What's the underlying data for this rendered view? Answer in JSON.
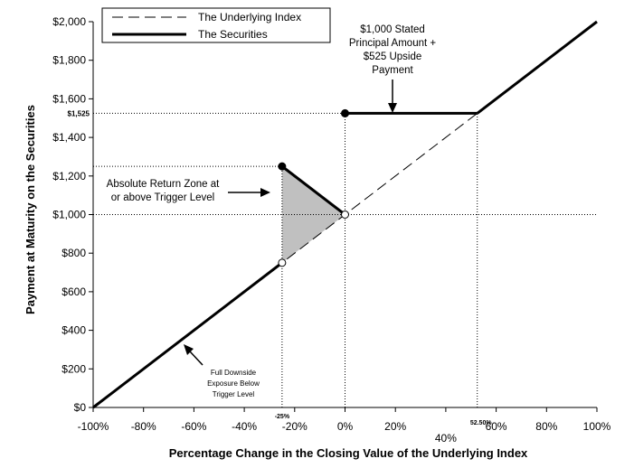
{
  "chart_data": {
    "type": "line",
    "xlabel": "Percentage Change in the Closing Value of the Underlying Index",
    "ylabel": "Payment at Maturity on the Securities",
    "xlim": [
      -100,
      100
    ],
    "ylim": [
      0,
      2000
    ],
    "x_ticks": [
      -100,
      -80,
      -60,
      -40,
      -20,
      0,
      20,
      40,
      60,
      80,
      100
    ],
    "x_tick_labels": [
      "-100%",
      "-80%",
      "-60%",
      "-40%",
      "-20%",
      "0%",
      "20%",
      "40%",
      "60%",
      "80%",
      "100%"
    ],
    "y_ticks": [
      0,
      200,
      400,
      600,
      800,
      1000,
      1200,
      1400,
      1600,
      1800,
      2000
    ],
    "y_tick_labels": [
      "$0",
      "$200",
      "$400",
      "$600",
      "$800",
      "$1,000",
      "$1,200",
      "$1,400",
      "$1,600",
      "$1,800",
      "$2,000"
    ],
    "grid": false,
    "legend_position": "top-left",
    "series": [
      {
        "name": "The Underlying Index",
        "style": "dashed",
        "color": "#000000",
        "x": [
          -100,
          100
        ],
        "y": [
          0,
          2000
        ]
      },
      {
        "name": "The Securities",
        "style": "solid-bold",
        "color": "#000000",
        "segments": [
          {
            "x": [
              -100,
              -25
            ],
            "y": [
              0,
              750
            ]
          },
          {
            "x": [
              -25,
              0
            ],
            "y": [
              1250,
              1000
            ]
          },
          {
            "x": [
              0,
              52.5
            ],
            "y": [
              1525,
              1525
            ]
          },
          {
            "x": [
              52.5,
              100
            ],
            "y": [
              1525,
              2000
            ]
          }
        ]
      }
    ],
    "points": [
      {
        "x": -25,
        "y": 750,
        "fill": "open"
      },
      {
        "x": -25,
        "y": 1250,
        "fill": "filled"
      },
      {
        "x": 0,
        "y": 1000,
        "fill": "open"
      },
      {
        "x": 0,
        "y": 1525,
        "fill": "filled"
      }
    ],
    "shaded_region": {
      "x": [
        -25,
        -25,
        0
      ],
      "y": [
        750,
        1250,
        1000
      ],
      "color": "#c0c0c0"
    },
    "reference_lines": [
      {
        "orientation": "horizontal",
        "y": 1525,
        "x_from": -100,
        "x_to": 52.5
      },
      {
        "orientation": "horizontal",
        "y": 1000,
        "x_from": -100,
        "x_to": 100
      },
      {
        "orientation": "horizontal",
        "y": 1250,
        "x_from": -100,
        "x_to": -25
      },
      {
        "orientation": "vertical",
        "x": -25,
        "y_from": 0,
        "y_to": 1250
      },
      {
        "orientation": "vertical",
        "x": 0,
        "y_from": 0,
        "y_to": 1525
      },
      {
        "orientation": "vertical",
        "x": 52.5,
        "y_from": 0,
        "y_to": 1525
      }
    ],
    "extra_labels": {
      "y_1525": "$1,525",
      "x_minus25": "-25%",
      "x_52_5": "52.50%"
    },
    "annotations": [
      {
        "lines": [
          "$1,000 Stated",
          "Principal Amount +",
          "$525 Upside",
          "Payment"
        ]
      },
      {
        "lines": [
          "Absolute Return Zone at",
          "or above Trigger Level"
        ]
      },
      {
        "lines": [
          "Full Downside",
          "Exposure Below",
          "Trigger Level"
        ]
      }
    ]
  }
}
